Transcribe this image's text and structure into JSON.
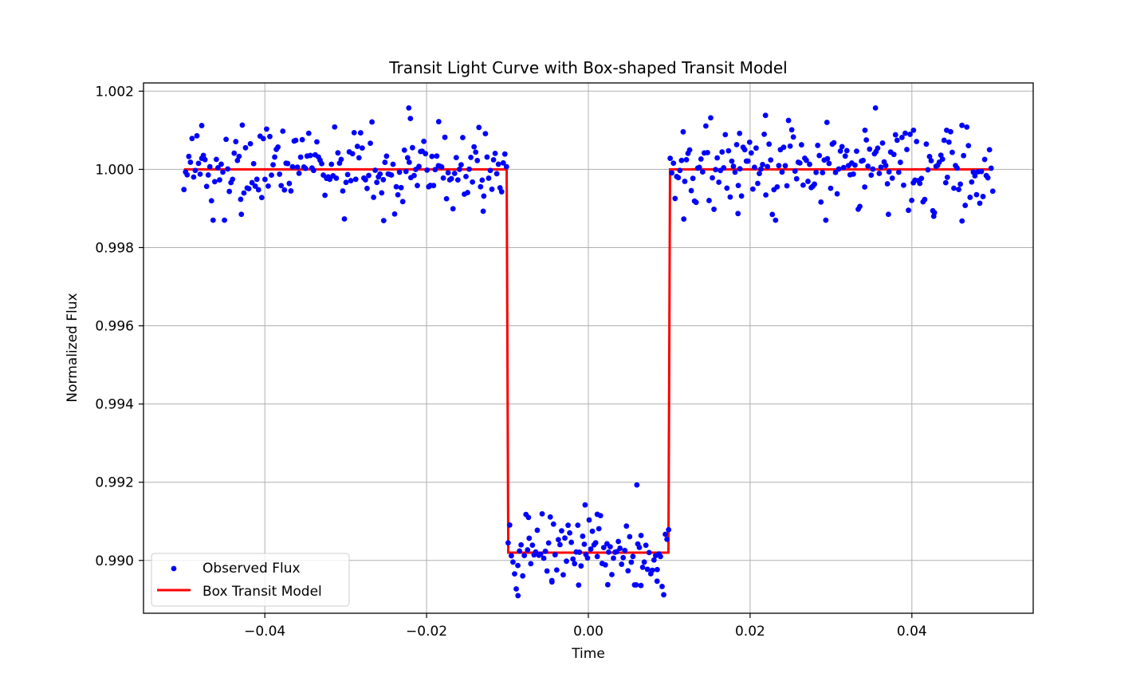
{
  "chart_data": {
    "type": "scatter",
    "title": "Transit Light Curve with Box-shaped Transit Model",
    "xlabel": "Time",
    "ylabel": "Normalized Flux",
    "xlim": [
      -0.055,
      0.055
    ],
    "ylim": [
      0.98865,
      1.00221
    ],
    "xticks": [
      -0.04,
      -0.02,
      0.0,
      0.02,
      0.04
    ],
    "xtick_labels": [
      "−0.04",
      "−0.02",
      "0.00",
      "0.02",
      "0.04"
    ],
    "yticks": [
      0.99,
      0.992,
      0.994,
      0.996,
      0.998,
      1.0,
      1.002
    ],
    "ytick_labels": [
      "0.990",
      "0.992",
      "0.994",
      "0.996",
      "0.998",
      "1.000",
      "1.002"
    ],
    "grid": true,
    "legend_position": "lower-left",
    "series": [
      {
        "name": "Observed Flux",
        "type": "scatter",
        "color": "#0000ff",
        "x_range": [
          -0.05,
          0.05
        ],
        "n_points": 500,
        "baseline": 1.0,
        "in_transit_level": 0.9902,
        "noise_sigma": 0.0005,
        "points": [
          [
            -0.0478,
            1.00112
          ],
          [
            -0.0222,
            1.00157
          ],
          [
            -0.022,
            1.0013
          ],
          [
            -0.0185,
            1.00122
          ],
          [
            -0.0253,
            0.99869
          ],
          [
            -0.0429,
            0.99885
          ],
          [
            -0.013,
            0.99893
          ],
          [
            -0.0004,
            0.99142
          ],
          [
            0.006,
            0.99193
          ],
          [
            0.0011,
            0.99118
          ],
          [
            -0.0074,
            0.9911
          ],
          [
            -0.0087,
            0.9891
          ],
          [
            -0.0045,
            0.98945
          ],
          [
            -0.0012,
            0.98937
          ],
          [
            0.0024,
            0.98938
          ],
          [
            0.0065,
            0.98936
          ],
          [
            0.0085,
            0.98947
          ],
          [
            0.0355,
            1.00157
          ],
          [
            0.0295,
            1.0012
          ],
          [
            0.0219,
            1.00138
          ],
          [
            0.0118,
            0.99873
          ],
          [
            0.0185,
            0.99887
          ],
          [
            0.0371,
            0.99885
          ],
          [
            0.0427,
            0.9988
          ],
          [
            0.0462,
            0.99868
          ],
          [
            0.0342,
            1.001
          ],
          [
            0.0402,
            1.001
          ],
          [
            0.0443,
            1.001
          ],
          [
            0.0187,
            1.00092
          ]
        ]
      },
      {
        "name": "Box Transit Model",
        "type": "line",
        "color": "#ff0000",
        "x": [
          -0.05,
          -0.0101,
          -0.0099,
          0.0099,
          0.0101,
          0.05
        ],
        "y": [
          1.0,
          1.0,
          0.9902,
          0.9902,
          1.0,
          1.0
        ]
      }
    ]
  }
}
